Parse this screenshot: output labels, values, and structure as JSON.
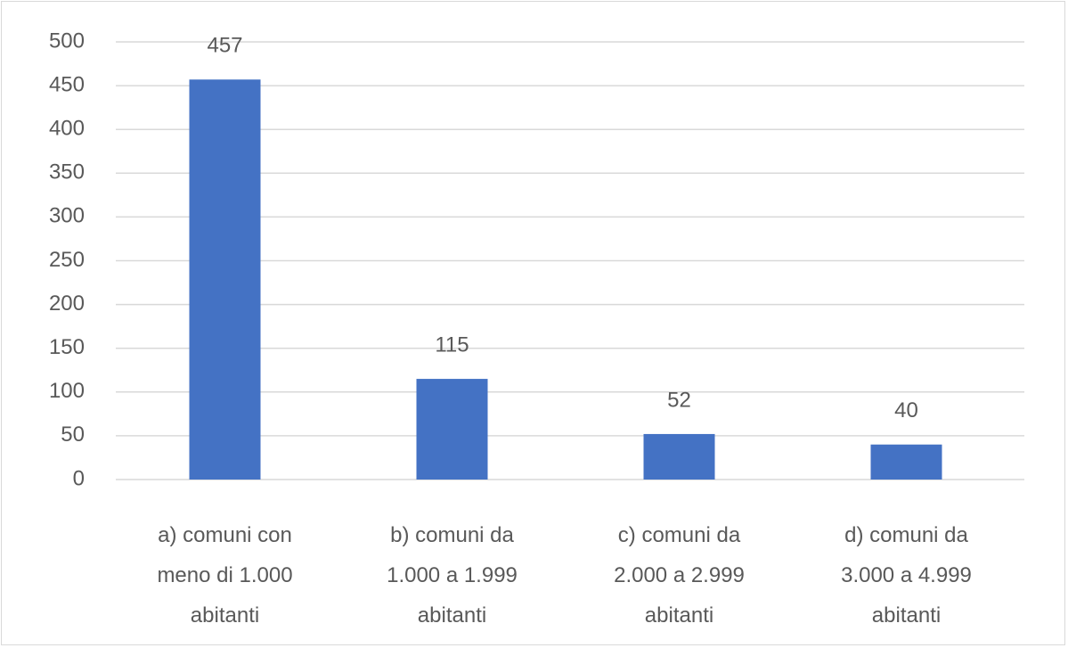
{
  "chart_data": {
    "type": "bar",
    "categories": [
      "a) comuni con meno di 1.000 abitanti",
      "b) comuni da 1.000 a 1.999 abitanti",
      "c) comuni da 2.000 a 2.999 abitanti",
      "d) comuni da 3.000 a 4.999 abitanti"
    ],
    "values": [
      457,
      115,
      52,
      40
    ],
    "color": "#4472c4",
    "ylim": [
      0,
      500
    ],
    "yticks": [
      0,
      50,
      100,
      150,
      200,
      250,
      300,
      350,
      400,
      450,
      500
    ],
    "grid": true
  }
}
